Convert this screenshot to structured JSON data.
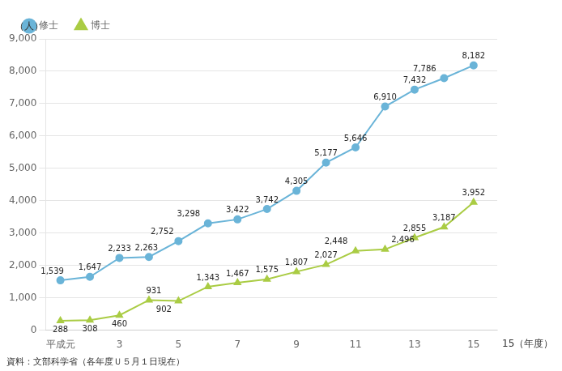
{
  "chart_data": {
    "type": "line",
    "ylabel": "（人）",
    "xlabel": "15（年度）",
    "annotations": [
      "資料：文部科学省（各年度Ｕ５月１日現在）"
    ],
    "x": [
      1,
      2,
      3,
      4,
      5,
      6,
      7,
      8,
      9,
      10,
      11,
      12,
      13,
      14,
      15
    ],
    "series": [
      {
        "name": "修士",
        "color": "#6ab4d8",
        "marker": "circle",
        "values": [
          1539,
          1647,
          2233,
          2263,
          2752,
          3298,
          3422,
          3742,
          4305,
          5177,
          5646,
          6910,
          7432,
          7786,
          8182
        ],
        "value_labels": [
          "1,539",
          "1,647",
          "2,233",
          "2,263",
          "2,752",
          "3,298",
          "3,422",
          "3,742",
          "4,305",
          "5,177",
          "5,646",
          "6,910",
          "7,432",
          "7,786",
          "8,182"
        ]
      },
      {
        "name": "博士",
        "color": "#aacc44",
        "marker": "triangle",
        "values": [
          288,
          308,
          460,
          931,
          902,
          1343,
          1467,
          1575,
          1807,
          2027,
          2448,
          2496,
          2855,
          3187,
          3952
        ],
        "value_labels": [
          "288",
          "308",
          "460",
          "931",
          "902",
          "1,343",
          "1,467",
          "1,575",
          "1,807",
          "2,027",
          "2,448",
          "2,496",
          "2,855",
          "3,187",
          "3,952"
        ]
      }
    ],
    "xlim": [
      0.5,
      15.8
    ],
    "xticks": [
      {
        "value": 1,
        "label": "平成元"
      },
      3,
      5,
      7,
      9,
      11,
      13,
      15
    ],
    "ylim": [
      0,
      9000
    ],
    "yticks": [
      0,
      {
        "value": 1000,
        "label": "1,000"
      },
      {
        "value": 2000,
        "label": "2,000"
      },
      {
        "value": 3000,
        "label": "3,000"
      },
      {
        "value": 4000,
        "label": "4,000"
      },
      {
        "value": 5000,
        "label": "5,000"
      },
      {
        "value": 6000,
        "label": "6,000"
      },
      {
        "value": 7000,
        "label": "7,000"
      },
      {
        "value": 8000,
        "label": "8,000"
      },
      {
        "value": 9000,
        "label": "9,000"
      }
    ],
    "grid": "y",
    "legend": "upper left",
    "data_labels": true
  }
}
